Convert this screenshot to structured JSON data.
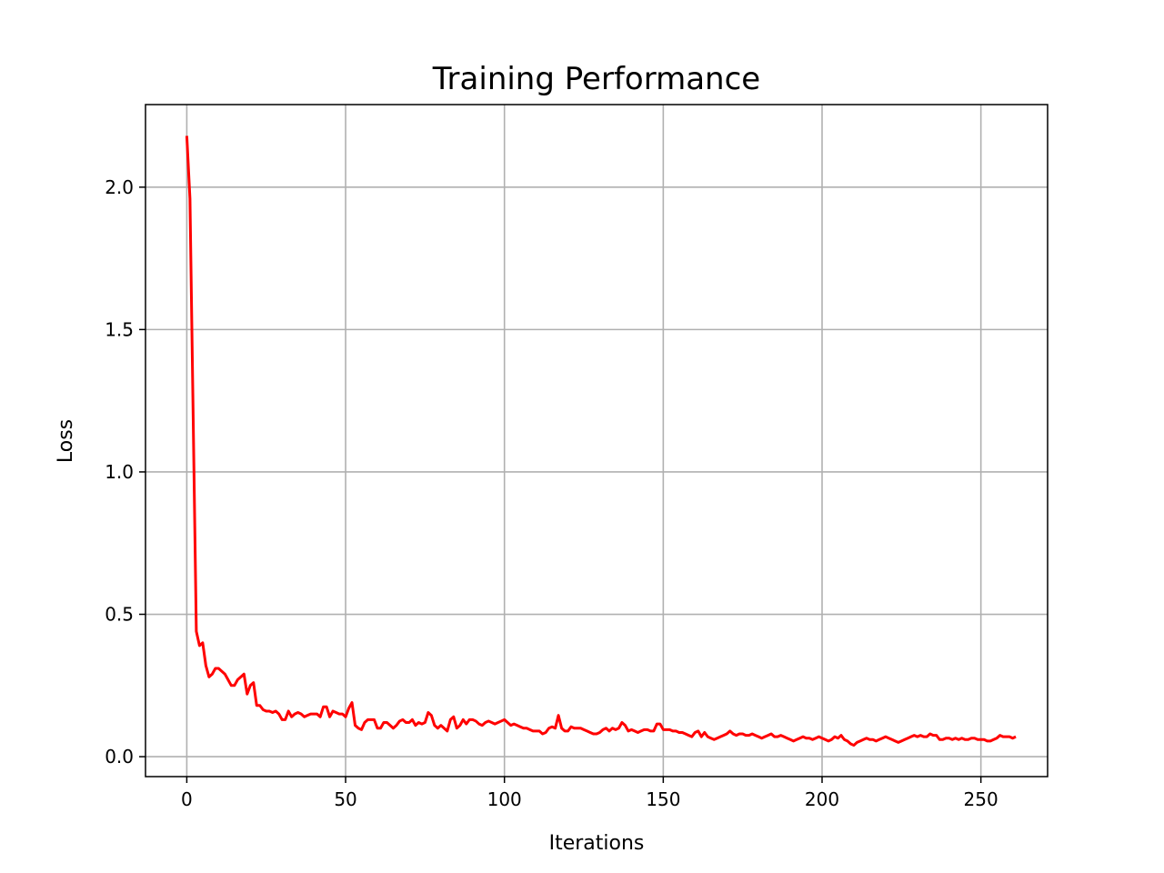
{
  "chart_data": {
    "type": "line",
    "title": "Training Performance",
    "xlabel": "Iterations",
    "ylabel": "Loss",
    "xlim": [
      -13,
      271
    ],
    "ylim": [
      -0.07,
      2.29
    ],
    "xticks": [
      0,
      50,
      100,
      150,
      200,
      250
    ],
    "yticks": [
      0.0,
      0.5,
      1.0,
      1.5,
      2.0
    ],
    "xtick_labels": [
      "0",
      "50",
      "100",
      "150",
      "200",
      "250"
    ],
    "ytick_labels": [
      "0.0",
      "0.5",
      "1.0",
      "1.5",
      "2.0"
    ],
    "grid": true,
    "series": [
      {
        "color": "#ff0000",
        "x_start": 0,
        "x_step": 1,
        "values": [
          2.18,
          1.96,
          1.2,
          0.44,
          0.39,
          0.4,
          0.32,
          0.28,
          0.29,
          0.31,
          0.31,
          0.3,
          0.29,
          0.27,
          0.25,
          0.25,
          0.27,
          0.28,
          0.29,
          0.22,
          0.25,
          0.26,
          0.18,
          0.18,
          0.165,
          0.16,
          0.16,
          0.155,
          0.16,
          0.15,
          0.13,
          0.13,
          0.16,
          0.14,
          0.15,
          0.155,
          0.15,
          0.14,
          0.145,
          0.15,
          0.15,
          0.15,
          0.14,
          0.175,
          0.175,
          0.14,
          0.16,
          0.155,
          0.15,
          0.15,
          0.14,
          0.17,
          0.19,
          0.11,
          0.1,
          0.095,
          0.12,
          0.13,
          0.13,
          0.13,
          0.1,
          0.1,
          0.12,
          0.12,
          0.11,
          0.1,
          0.11,
          0.125,
          0.13,
          0.12,
          0.12,
          0.13,
          0.11,
          0.12,
          0.115,
          0.12,
          0.155,
          0.145,
          0.11,
          0.1,
          0.11,
          0.1,
          0.09,
          0.13,
          0.14,
          0.1,
          0.11,
          0.13,
          0.115,
          0.13,
          0.13,
          0.125,
          0.115,
          0.11,
          0.12,
          0.125,
          0.12,
          0.115,
          0.12,
          0.125,
          0.13,
          0.12,
          0.11,
          0.115,
          0.11,
          0.105,
          0.1,
          0.1,
          0.095,
          0.09,
          0.09,
          0.09,
          0.08,
          0.085,
          0.1,
          0.105,
          0.1,
          0.145,
          0.1,
          0.09,
          0.09,
          0.105,
          0.1,
          0.1,
          0.1,
          0.095,
          0.09,
          0.085,
          0.08,
          0.08,
          0.085,
          0.095,
          0.1,
          0.09,
          0.1,
          0.095,
          0.1,
          0.12,
          0.11,
          0.09,
          0.095,
          0.09,
          0.085,
          0.09,
          0.095,
          0.095,
          0.09,
          0.09,
          0.115,
          0.115,
          0.095,
          0.095,
          0.095,
          0.09,
          0.09,
          0.085,
          0.085,
          0.08,
          0.075,
          0.07,
          0.085,
          0.09,
          0.07,
          0.085,
          0.07,
          0.065,
          0.06,
          0.065,
          0.07,
          0.075,
          0.08,
          0.09,
          0.08,
          0.075,
          0.08,
          0.08,
          0.075,
          0.075,
          0.08,
          0.075,
          0.07,
          0.065,
          0.07,
          0.075,
          0.08,
          0.07,
          0.07,
          0.075,
          0.07,
          0.065,
          0.06,
          0.055,
          0.06,
          0.065,
          0.07,
          0.065,
          0.065,
          0.06,
          0.065,
          0.07,
          0.065,
          0.06,
          0.055,
          0.06,
          0.07,
          0.065,
          0.075,
          0.06,
          0.055,
          0.045,
          0.04,
          0.05,
          0.055,
          0.06,
          0.065,
          0.06,
          0.06,
          0.055,
          0.06,
          0.065,
          0.07,
          0.065,
          0.06,
          0.055,
          0.05,
          0.055,
          0.06,
          0.065,
          0.07,
          0.075,
          0.07,
          0.075,
          0.07,
          0.07,
          0.08,
          0.075,
          0.075,
          0.06,
          0.06,
          0.065,
          0.065,
          0.06,
          0.065,
          0.06,
          0.065,
          0.06,
          0.06,
          0.065,
          0.065,
          0.06,
          0.06,
          0.06,
          0.055,
          0.055,
          0.06,
          0.065,
          0.075,
          0.07,
          0.07,
          0.07,
          0.065,
          0.07
        ]
      }
    ]
  }
}
